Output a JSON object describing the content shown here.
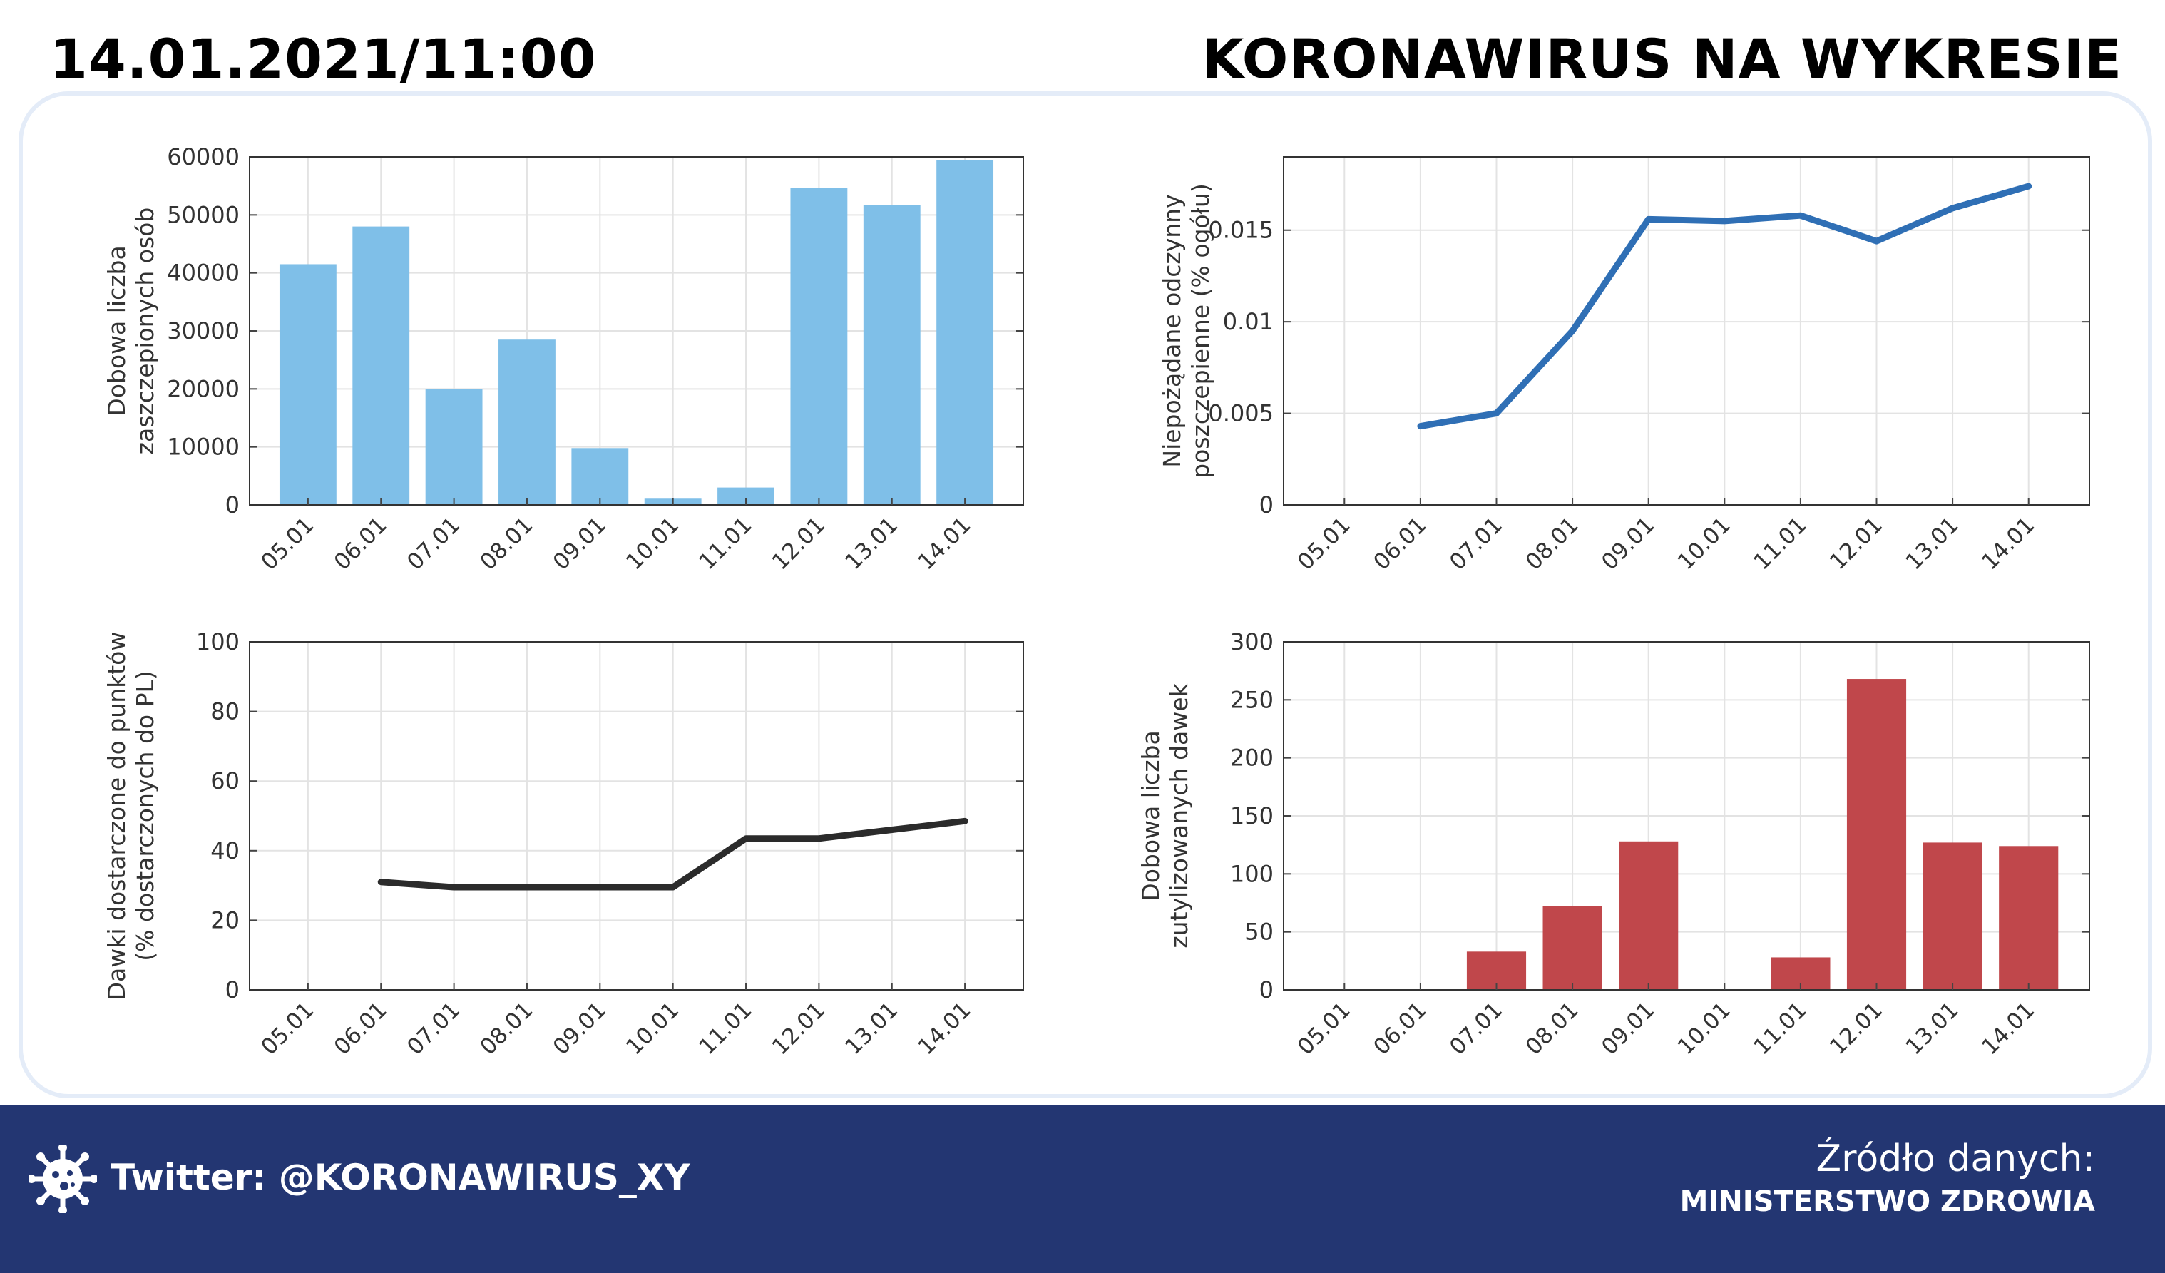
{
  "header": {
    "datetime": "14.01.2021/11:00",
    "title": "KORONAWIRUS NA WYKRESIE"
  },
  "footer": {
    "twitter": "Twitter: @KORONAWIRUS_XY",
    "source_label": "Źródło danych:",
    "source_value": "MINISTERSTWO ZDROWIA"
  },
  "colors": {
    "bar_blue": "#7fbfe8",
    "line_blue": "#2f6fb5",
    "line_black": "#2b2b2b",
    "bar_red": "#c0474b",
    "footer_bg": "#233672"
  },
  "chart_data": [
    {
      "type": "bar",
      "categories": [
        "05.01",
        "06.01",
        "07.01",
        "08.01",
        "09.01",
        "10.01",
        "11.01",
        "12.01",
        "13.01",
        "14.01"
      ],
      "values": [
        41500,
        48000,
        20000,
        28500,
        9800,
        1200,
        3000,
        54700,
        51700,
        59500
      ],
      "ylabel": [
        "Dobowa liczba",
        "zaszczepionych osób"
      ],
      "ylim": [
        0,
        60000
      ],
      "yticks": [
        "0",
        "10000",
        "20000",
        "30000",
        "40000",
        "50000",
        "60000"
      ],
      "grid": true,
      "color": "#7fbfe8"
    },
    {
      "type": "line",
      "categories": [
        "05.01",
        "06.01",
        "07.01",
        "08.01",
        "09.01",
        "10.01",
        "11.01",
        "12.01",
        "13.01",
        "14.01"
      ],
      "values": [
        null,
        0.0043,
        0.005,
        0.0095,
        0.0156,
        0.0155,
        0.0158,
        0.0144,
        0.0162,
        0.0174
      ],
      "ylabel": [
        "Niepożądane odczynny",
        "poszczepienne (% ogółu)"
      ],
      "ylim": [
        0,
        0.019
      ],
      "yticks": [
        "0",
        "0.005",
        "0.01",
        "0.015"
      ],
      "grid": true,
      "color": "#2f6fb5"
    },
    {
      "type": "line",
      "categories": [
        "05.01",
        "06.01",
        "07.01",
        "08.01",
        "09.01",
        "10.01",
        "11.01",
        "12.01",
        "13.01",
        "14.01"
      ],
      "values": [
        null,
        31,
        29.5,
        29.5,
        29.5,
        29.5,
        43.5,
        43.5,
        46,
        48.5
      ],
      "ylabel": [
        "Dawki dostarczone do punktów",
        "(% dostarczonych do PL)"
      ],
      "ylim": [
        0,
        100
      ],
      "yticks": [
        "0",
        "20",
        "40",
        "60",
        "80",
        "100"
      ],
      "grid": true,
      "color": "#2b2b2b"
    },
    {
      "type": "bar",
      "categories": [
        "05.01",
        "06.01",
        "07.01",
        "08.01",
        "09.01",
        "10.01",
        "11.01",
        "12.01",
        "13.01",
        "14.01"
      ],
      "values": [
        0,
        0,
        33,
        72,
        128,
        0,
        28,
        268,
        127,
        124
      ],
      "ylabel": [
        "Dobowa liczba",
        "zutylizowanych dawek"
      ],
      "ylim": [
        0,
        300
      ],
      "yticks": [
        "0",
        "50",
        "100",
        "150",
        "200",
        "250",
        "300"
      ],
      "grid": true,
      "color": "#c0474b"
    }
  ]
}
